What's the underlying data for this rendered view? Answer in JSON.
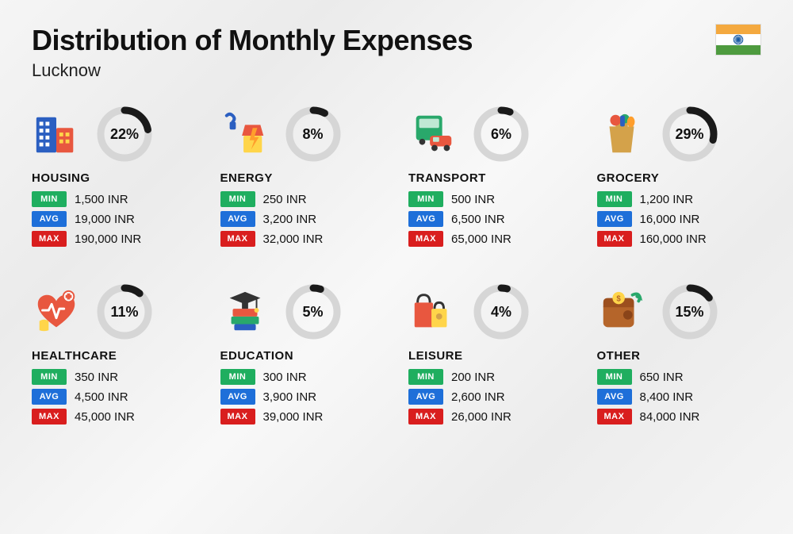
{
  "title": "Distribution of Monthly Expenses",
  "subtitle": "Lucknow",
  "currency": "INR",
  "flag": {
    "top": "#f4a93f",
    "mid": "#ffffff",
    "bot": "#4e9b3f",
    "chakra": "#1557a0"
  },
  "ring": {
    "bg": "#d6d6d6",
    "fg": "#1a1a1a",
    "stroke": 9,
    "radius": 30
  },
  "tags": {
    "min": {
      "label": "MIN",
      "bg": "#1fae5f"
    },
    "avg": {
      "label": "AVG",
      "bg": "#1e6fd9"
    },
    "max": {
      "label": "MAX",
      "bg": "#d91e1e"
    }
  },
  "cards": [
    {
      "key": "housing",
      "name": "HOUSING",
      "pct": 22,
      "min": "1,500 INR",
      "avg": "19,000 INR",
      "max": "190,000 INR"
    },
    {
      "key": "energy",
      "name": "ENERGY",
      "pct": 8,
      "min": "250 INR",
      "avg": "3,200 INR",
      "max": "32,000 INR"
    },
    {
      "key": "transport",
      "name": "TRANSPORT",
      "pct": 6,
      "min": "500 INR",
      "avg": "6,500 INR",
      "max": "65,000 INR"
    },
    {
      "key": "grocery",
      "name": "GROCERY",
      "pct": 29,
      "min": "1,200 INR",
      "avg": "16,000 INR",
      "max": "160,000 INR"
    },
    {
      "key": "healthcare",
      "name": "HEALTHCARE",
      "pct": 11,
      "min": "350 INR",
      "avg": "4,500 INR",
      "max": "45,000 INR"
    },
    {
      "key": "education",
      "name": "EDUCATION",
      "pct": 5,
      "min": "300 INR",
      "avg": "3,900 INR",
      "max": "39,000 INR"
    },
    {
      "key": "leisure",
      "name": "LEISURE",
      "pct": 4,
      "min": "200 INR",
      "avg": "2,600 INR",
      "max": "26,000 INR"
    },
    {
      "key": "other",
      "name": "OTHER",
      "pct": 15,
      "min": "650 INR",
      "avg": "8,400 INR",
      "max": "84,000 INR"
    }
  ]
}
